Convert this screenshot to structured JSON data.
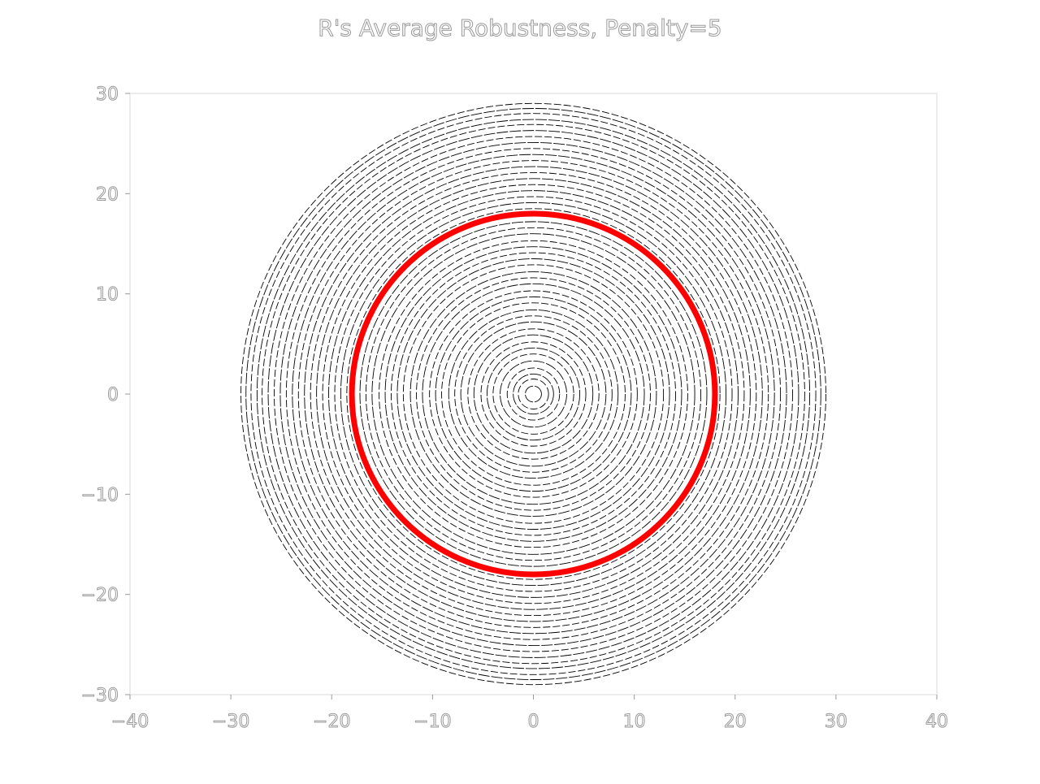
{
  "chart_data": {
    "type": "line",
    "title": "R's Average Robustness, Penalty=5",
    "xlabel": "",
    "ylabel": "",
    "xlim": [
      -40,
      40
    ],
    "ylim": [
      -30,
      30
    ],
    "x_ticks": [
      -40,
      -30,
      -20,
      -10,
      0,
      10,
      20,
      30,
      40
    ],
    "y_ticks": [
      -30,
      -20,
      -10,
      0,
      10,
      20,
      30
    ],
    "x_tick_labels": [
      "−40",
      "−30",
      "−20",
      "−10",
      "0",
      "10",
      "20",
      "30",
      "40"
    ],
    "y_tick_labels": [
      "−30",
      "−20",
      "−10",
      "0",
      "10",
      "20",
      "30"
    ],
    "grid": false,
    "series": [
      {
        "shape": "concentric circles centered at origin",
        "color": "#000000",
        "style": "thin dashed",
        "radii": [
          0.8,
          1.5,
          2.0,
          2.6,
          3.3,
          4.0,
          4.6,
          5.2,
          5.9,
          6.5,
          7.2,
          7.8,
          8.4,
          9.1,
          9.7,
          10.3,
          11.0,
          11.6,
          12.2,
          12.9,
          13.5,
          14.1,
          14.7,
          15.3,
          16.0,
          16.6,
          17.2,
          18.5,
          19.1,
          19.7,
          20.3,
          20.9,
          21.5,
          22.1,
          22.7,
          23.3,
          23.9,
          24.5,
          25.1,
          25.7,
          26.3,
          26.9,
          27.4,
          28.0,
          28.5,
          29.0
        ]
      },
      {
        "shape": "circle centered at origin",
        "color": "#ff0000",
        "style": "thick solid",
        "radii": [
          18.0
        ]
      }
    ]
  }
}
